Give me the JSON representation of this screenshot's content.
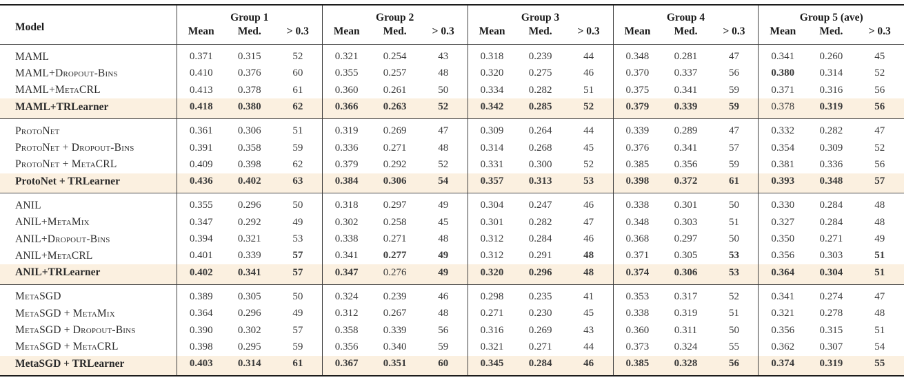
{
  "table": {
    "header": {
      "model_label": "Model",
      "groups": [
        "Group 1",
        "Group 2",
        "Group 3",
        "Group 4",
        "Group 5 (ave)"
      ],
      "subcols": [
        "Mean",
        "Med.",
        "> 0.3"
      ]
    },
    "highlight_color": "#fbf0e0",
    "sections": [
      {
        "rows": [
          {
            "model": "MAML",
            "smallcaps": true,
            "highlight": false,
            "bold": [],
            "values": [
              "0.371",
              "0.315",
              "52",
              "0.321",
              "0.254",
              "43",
              "0.318",
              "0.239",
              "44",
              "0.348",
              "0.281",
              "47",
              "0.341",
              "0.260",
              "45"
            ]
          },
          {
            "model": "MAML+Dropout-Bins",
            "smallcaps": true,
            "highlight": false,
            "bold": [
              12
            ],
            "values": [
              "0.410",
              "0.376",
              "60",
              "0.355",
              "0.257",
              "48",
              "0.320",
              "0.275",
              "46",
              "0.370",
              "0.337",
              "56",
              "0.380",
              "0.314",
              "52"
            ]
          },
          {
            "model": "MAML+MetaCRL",
            "smallcaps": true,
            "highlight": false,
            "bold": [],
            "values": [
              "0.413",
              "0.378",
              "61",
              "0.360",
              "0.261",
              "50",
              "0.334",
              "0.282",
              "51",
              "0.375",
              "0.341",
              "59",
              "0.371",
              "0.316",
              "56"
            ]
          },
          {
            "model": "MAML+TRLearner",
            "smallcaps": false,
            "highlight": true,
            "bold": [
              0,
              1,
              2,
              3,
              4,
              5,
              6,
              7,
              8,
              9,
              10,
              11,
              13,
              14
            ],
            "values": [
              "0.418",
              "0.380",
              "62",
              "0.366",
              "0.263",
              "52",
              "0.342",
              "0.285",
              "52",
              "0.379",
              "0.339",
              "59",
              "0.378",
              "0.319",
              "56"
            ]
          }
        ]
      },
      {
        "rows": [
          {
            "model": "ProtoNet",
            "smallcaps": true,
            "highlight": false,
            "bold": [],
            "values": [
              "0.361",
              "0.306",
              "51",
              "0.319",
              "0.269",
              "47",
              "0.309",
              "0.264",
              "44",
              "0.339",
              "0.289",
              "47",
              "0.332",
              "0.282",
              "47"
            ]
          },
          {
            "model": "ProtoNet + Dropout-Bins",
            "smallcaps": true,
            "highlight": false,
            "bold": [],
            "values": [
              "0.391",
              "0.358",
              "59",
              "0.336",
              "0.271",
              "48",
              "0.314",
              "0.268",
              "45",
              "0.376",
              "0.341",
              "57",
              "0.354",
              "0.309",
              "52"
            ]
          },
          {
            "model": "ProtoNet + MetaCRL",
            "smallcaps": true,
            "highlight": false,
            "bold": [],
            "values": [
              "0.409",
              "0.398",
              "62",
              "0.379",
              "0.292",
              "52",
              "0.331",
              "0.300",
              "52",
              "0.385",
              "0.356",
              "59",
              "0.381",
              "0.336",
              "56"
            ]
          },
          {
            "model": "ProtoNet + TRLearner",
            "smallcaps": false,
            "highlight": true,
            "bold": [
              0,
              1,
              2,
              3,
              4,
              5,
              6,
              7,
              8,
              9,
              10,
              11,
              12,
              13,
              14
            ],
            "values": [
              "0.436",
              "0.402",
              "63",
              "0.384",
              "0.306",
              "54",
              "0.357",
              "0.313",
              "53",
              "0.398",
              "0.372",
              "61",
              "0.393",
              "0.348",
              "57"
            ]
          }
        ]
      },
      {
        "rows": [
          {
            "model": "ANIL",
            "smallcaps": true,
            "highlight": false,
            "bold": [],
            "values": [
              "0.355",
              "0.296",
              "50",
              "0.318",
              "0.297",
              "49",
              "0.304",
              "0.247",
              "46",
              "0.338",
              "0.301",
              "50",
              "0.330",
              "0.284",
              "48"
            ]
          },
          {
            "model": "ANIL+MetaMix",
            "smallcaps": true,
            "highlight": false,
            "bold": [],
            "values": [
              "0.347",
              "0.292",
              "49",
              "0.302",
              "0.258",
              "45",
              "0.301",
              "0.282",
              "47",
              "0.348",
              "0.303",
              "51",
              "0.327",
              "0.284",
              "48"
            ]
          },
          {
            "model": "ANIL+Dropout-Bins",
            "smallcaps": true,
            "highlight": false,
            "bold": [],
            "values": [
              "0.394",
              "0.321",
              "53",
              "0.338",
              "0.271",
              "48",
              "0.312",
              "0.284",
              "46",
              "0.368",
              "0.297",
              "50",
              "0.350",
              "0.271",
              "49"
            ]
          },
          {
            "model": "ANIL+MetaCRL",
            "smallcaps": true,
            "highlight": false,
            "bold": [
              2,
              4,
              5,
              8,
              11,
              14
            ],
            "values": [
              "0.401",
              "0.339",
              "57",
              "0.341",
              "0.277",
              "49",
              "0.312",
              "0.291",
              "48",
              "0.371",
              "0.305",
              "53",
              "0.356",
              "0.303",
              "51"
            ]
          },
          {
            "model": "ANIL+TRLearner",
            "smallcaps": false,
            "highlight": true,
            "bold": [
              0,
              1,
              2,
              3,
              5,
              6,
              7,
              8,
              9,
              10,
              11,
              12,
              13,
              14
            ],
            "values": [
              "0.402",
              "0.341",
              "57",
              "0.347",
              "0.276",
              "49",
              "0.320",
              "0.296",
              "48",
              "0.374",
              "0.306",
              "53",
              "0.364",
              "0.304",
              "51"
            ]
          }
        ]
      },
      {
        "rows": [
          {
            "model": "MetaSGD",
            "smallcaps": true,
            "highlight": false,
            "bold": [],
            "values": [
              "0.389",
              "0.305",
              "50",
              "0.324",
              "0.239",
              "46",
              "0.298",
              "0.235",
              "41",
              "0.353",
              "0.317",
              "52",
              "0.341",
              "0.274",
              "47"
            ]
          },
          {
            "model": "MetaSGD + MetaMix",
            "smallcaps": true,
            "highlight": false,
            "bold": [],
            "values": [
              "0.364",
              "0.296",
              "49",
              "0.312",
              "0.267",
              "48",
              "0.271",
              "0.230",
              "45",
              "0.338",
              "0.319",
              "51",
              "0.321",
              "0.278",
              "48"
            ]
          },
          {
            "model": "MetaSGD + Dropout-Bins",
            "smallcaps": true,
            "highlight": false,
            "bold": [],
            "values": [
              "0.390",
              "0.302",
              "57",
              "0.358",
              "0.339",
              "56",
              "0.316",
              "0.269",
              "43",
              "0.360",
              "0.311",
              "50",
              "0.356",
              "0.315",
              "51"
            ]
          },
          {
            "model": "MetaSGD + MetaCRL",
            "smallcaps": true,
            "highlight": false,
            "bold": [],
            "values": [
              "0.398",
              "0.295",
              "59",
              "0.356",
              "0.340",
              "59",
              "0.321",
              "0.271",
              "44",
              "0.373",
              "0.324",
              "55",
              "0.362",
              "0.307",
              "54"
            ]
          },
          {
            "model": "MetaSGD + TRLearner",
            "smallcaps": false,
            "highlight": true,
            "bold": [
              0,
              1,
              2,
              3,
              4,
              5,
              6,
              7,
              8,
              9,
              10,
              11,
              12,
              13,
              14
            ],
            "values": [
              "0.403",
              "0.314",
              "61",
              "0.367",
              "0.351",
              "60",
              "0.345",
              "0.284",
              "46",
              "0.385",
              "0.328",
              "56",
              "0.374",
              "0.319",
              "55"
            ]
          }
        ]
      }
    ]
  }
}
